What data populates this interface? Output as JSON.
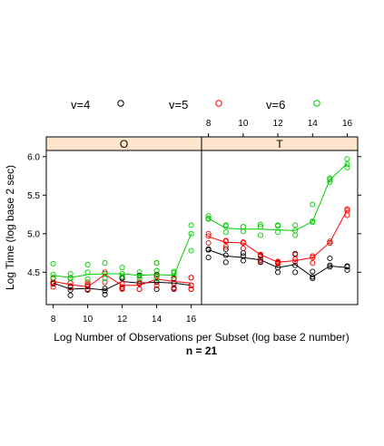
{
  "chart_data": {
    "type": "scatter",
    "title": "",
    "xlabel": "Log Number of Observations per Subset (log base 2 number)",
    "ylabel": "Log Time (log base 2 sec)",
    "subtitle": "n = 21",
    "xlim": [
      7.6,
      16.6
    ],
    "ylim": [
      4.08,
      6.08
    ],
    "x_ticks": [
      "8",
      "10",
      "12",
      "14",
      "16"
    ],
    "y_ticks": [
      "4.5",
      "5.0",
      "5.5",
      "6.0"
    ],
    "x_tick_values": [
      8,
      10,
      12,
      14,
      16
    ],
    "y_tick_values": [
      4.5,
      5.0,
      5.5,
      6.0
    ],
    "legend": [
      {
        "label": "v=4",
        "color": "#000000"
      },
      {
        "label": "v=5",
        "color": "#ff0000"
      },
      {
        "label": "v=6",
        "color": "#00cc00"
      }
    ],
    "panels": [
      {
        "name": "O",
        "series": [
          {
            "name": "v=4",
            "color": "#000000",
            "points": [
              [
                8,
                4.36
              ],
              [
                8,
                4.35
              ],
              [
                8,
                4.37
              ],
              [
                9,
                4.27
              ],
              [
                9,
                4.2
              ],
              [
                9,
                4.32
              ],
              [
                10,
                4.28
              ],
              [
                10,
                4.27
              ],
              [
                10,
                4.32
              ],
              [
                11,
                4.26
              ],
              [
                11,
                4.21
              ],
              [
                11,
                4.29
              ],
              [
                12,
                4.42
              ],
              [
                12,
                4.43
              ],
              [
                12,
                4.29
              ],
              [
                13,
                4.36
              ],
              [
                13,
                4.46
              ],
              [
                13,
                4.28
              ],
              [
                14,
                4.37
              ],
              [
                14,
                4.47
              ],
              [
                14,
                4.28
              ],
              [
                15,
                4.36
              ],
              [
                15,
                4.42
              ],
              [
                15,
                4.28
              ],
              [
                16,
                4.33
              ],
              [
                16,
                4.28
              ],
              [
                16,
                4.43
              ]
            ],
            "line": [
              [
                8,
                4.36
              ],
              [
                9,
                4.28
              ],
              [
                10,
                4.29
              ],
              [
                11,
                4.27
              ],
              [
                12,
                4.38
              ],
              [
                13,
                4.36
              ],
              [
                14,
                4.37
              ],
              [
                15,
                4.36
              ],
              [
                16,
                4.33
              ]
            ]
          },
          {
            "name": "v=5",
            "color": "#ff0000",
            "points": [
              [
                8,
                4.42
              ],
              [
                8,
                4.31
              ],
              [
                8,
                4.36
              ],
              [
                9,
                4.36
              ],
              [
                9,
                4.3
              ],
              [
                9,
                4.36
              ],
              [
                10,
                4.34
              ],
              [
                10,
                4.28
              ],
              [
                10,
                4.37
              ],
              [
                11,
                4.5
              ],
              [
                11,
                4.48
              ],
              [
                11,
                4.37
              ],
              [
                12,
                4.35
              ],
              [
                12,
                4.31
              ],
              [
                12,
                4.28
              ],
              [
                13,
                4.35
              ],
              [
                13,
                4.28
              ],
              [
                13,
                4.37
              ],
              [
                14,
                4.45
              ],
              [
                14,
                4.62
              ],
              [
                14,
                4.33
              ],
              [
                15,
                4.41
              ],
              [
                15,
                4.29
              ],
              [
                15,
                4.3
              ],
              [
                16,
                4.43
              ],
              [
                16,
                4.28
              ],
              [
                16,
                4.33
              ]
            ],
            "line": [
              [
                8,
                4.38
              ],
              [
                9,
                4.34
              ],
              [
                10,
                4.31
              ],
              [
                11,
                4.47
              ],
              [
                12,
                4.33
              ],
              [
                13,
                4.33
              ],
              [
                14,
                4.41
              ],
              [
                15,
                4.38
              ],
              [
                16,
                4.36
              ]
            ]
          },
          {
            "name": "v=6",
            "color": "#00cc00",
            "points": [
              [
                8,
                4.61
              ],
              [
                8,
                4.47
              ],
              [
                8,
                4.43
              ],
              [
                9,
                4.48
              ],
              [
                9,
                4.43
              ],
              [
                9,
                4.42
              ],
              [
                10,
                4.6
              ],
              [
                10,
                4.5
              ],
              [
                10,
                4.41
              ],
              [
                11,
                4.62
              ],
              [
                11,
                4.48
              ],
              [
                11,
                4.42
              ],
              [
                12,
                4.56
              ],
              [
                12,
                4.45
              ],
              [
                12,
                4.48
              ],
              [
                13,
                4.5
              ],
              [
                13,
                4.45
              ],
              [
                13,
                4.42
              ],
              [
                14,
                4.62
              ],
              [
                14,
                4.52
              ],
              [
                14,
                4.42
              ],
              [
                15,
                4.51
              ],
              [
                15,
                4.45
              ],
              [
                15,
                4.49
              ],
              [
                16,
                5.11
              ],
              [
                16,
                5.0
              ],
              [
                16,
                4.78
              ]
            ],
            "line": [
              [
                8,
                4.46
              ],
              [
                9,
                4.43
              ],
              [
                10,
                4.47
              ],
              [
                11,
                4.48
              ],
              [
                12,
                4.48
              ],
              [
                13,
                4.46
              ],
              [
                14,
                4.47
              ],
              [
                15,
                4.46
              ],
              [
                16,
                5.0
              ]
            ]
          }
        ]
      },
      {
        "name": "T",
        "series": [
          {
            "name": "v=4",
            "color": "#000000",
            "points": [
              [
                8,
                4.8
              ],
              [
                8,
                4.79
              ],
              [
                8,
                4.69
              ],
              [
                9,
                4.72
              ],
              [
                9,
                4.63
              ],
              [
                9,
                4.8
              ],
              [
                10,
                4.71
              ],
              [
                10,
                4.65
              ],
              [
                10,
                4.75
              ],
              [
                11,
                4.63
              ],
              [
                11,
                4.71
              ],
              [
                11,
                4.66
              ],
              [
                12,
                4.56
              ],
              [
                12,
                4.5
              ],
              [
                12,
                4.62
              ],
              [
                13,
                4.59
              ],
              [
                13,
                4.5
              ],
              [
                13,
                4.74
              ],
              [
                14,
                4.44
              ],
              [
                14,
                4.51
              ],
              [
                14,
                4.42
              ],
              [
                15,
                4.59
              ],
              [
                15,
                4.68
              ],
              [
                15,
                4.57
              ],
              [
                16,
                4.57
              ],
              [
                16,
                4.53
              ],
              [
                16,
                4.58
              ]
            ],
            "line": [
              [
                8,
                4.79
              ],
              [
                9,
                4.71
              ],
              [
                10,
                4.69
              ],
              [
                11,
                4.66
              ],
              [
                12,
                4.56
              ],
              [
                13,
                4.6
              ],
              [
                14,
                4.44
              ],
              [
                15,
                4.58
              ],
              [
                16,
                4.56
              ]
            ]
          },
          {
            "name": "v=5",
            "color": "#ff0000",
            "points": [
              [
                8,
                5.0
              ],
              [
                8,
                4.97
              ],
              [
                8,
                4.88
              ],
              [
                9,
                4.9
              ],
              [
                9,
                4.83
              ],
              [
                9,
                4.91
              ],
              [
                10,
                4.89
              ],
              [
                10,
                4.88
              ],
              [
                10,
                4.81
              ],
              [
                11,
                4.73
              ],
              [
                11,
                4.64
              ],
              [
                11,
                4.72
              ],
              [
                12,
                4.64
              ],
              [
                12,
                4.61
              ],
              [
                12,
                4.63
              ],
              [
                13,
                4.73
              ],
              [
                13,
                4.64
              ],
              [
                13,
                4.67
              ],
              [
                14,
                4.71
              ],
              [
                14,
                4.69
              ],
              [
                14,
                4.62
              ],
              [
                15,
                4.88
              ],
              [
                15,
                4.9
              ],
              [
                15,
                4.88
              ],
              [
                16,
                5.3
              ],
              [
                16,
                5.24
              ],
              [
                16,
                5.32
              ]
            ],
            "line": [
              [
                8,
                4.96
              ],
              [
                9,
                4.89
              ],
              [
                10,
                4.88
              ],
              [
                11,
                4.73
              ],
              [
                12,
                4.63
              ],
              [
                13,
                4.65
              ],
              [
                14,
                4.69
              ],
              [
                15,
                4.89
              ],
              [
                16,
                5.31
              ]
            ]
          },
          {
            "name": "v=6",
            "color": "#00cc00",
            "points": [
              [
                8,
                5.23
              ],
              [
                8,
                5.19
              ],
              [
                8,
                5.2
              ],
              [
                9,
                5.1
              ],
              [
                9,
                5.11
              ],
              [
                9,
                5.02
              ],
              [
                10,
                5.09
              ],
              [
                10,
                5.03
              ],
              [
                10,
                5.09
              ],
              [
                11,
                5.09
              ],
              [
                11,
                5.12
              ],
              [
                11,
                4.98
              ],
              [
                12,
                5.1
              ],
              [
                12,
                5.11
              ],
              [
                12,
                5.02
              ],
              [
                13,
                5.11
              ],
              [
                13,
                5.04
              ],
              [
                13,
                4.98
              ],
              [
                14,
                5.38
              ],
              [
                14,
                5.16
              ],
              [
                14,
                5.15
              ],
              [
                15,
                5.72
              ],
              [
                15,
                5.67
              ],
              [
                15,
                5.7
              ],
              [
                16,
                5.97
              ],
              [
                16,
                5.9
              ],
              [
                16,
                5.86
              ]
            ],
            "line": [
              [
                8,
                5.2
              ],
              [
                9,
                5.07
              ],
              [
                10,
                5.06
              ],
              [
                11,
                5.06
              ],
              [
                12,
                5.05
              ],
              [
                13,
                5.04
              ],
              [
                14,
                5.16
              ],
              [
                15,
                5.7
              ],
              [
                16,
                5.91
              ]
            ]
          }
        ]
      }
    ]
  }
}
